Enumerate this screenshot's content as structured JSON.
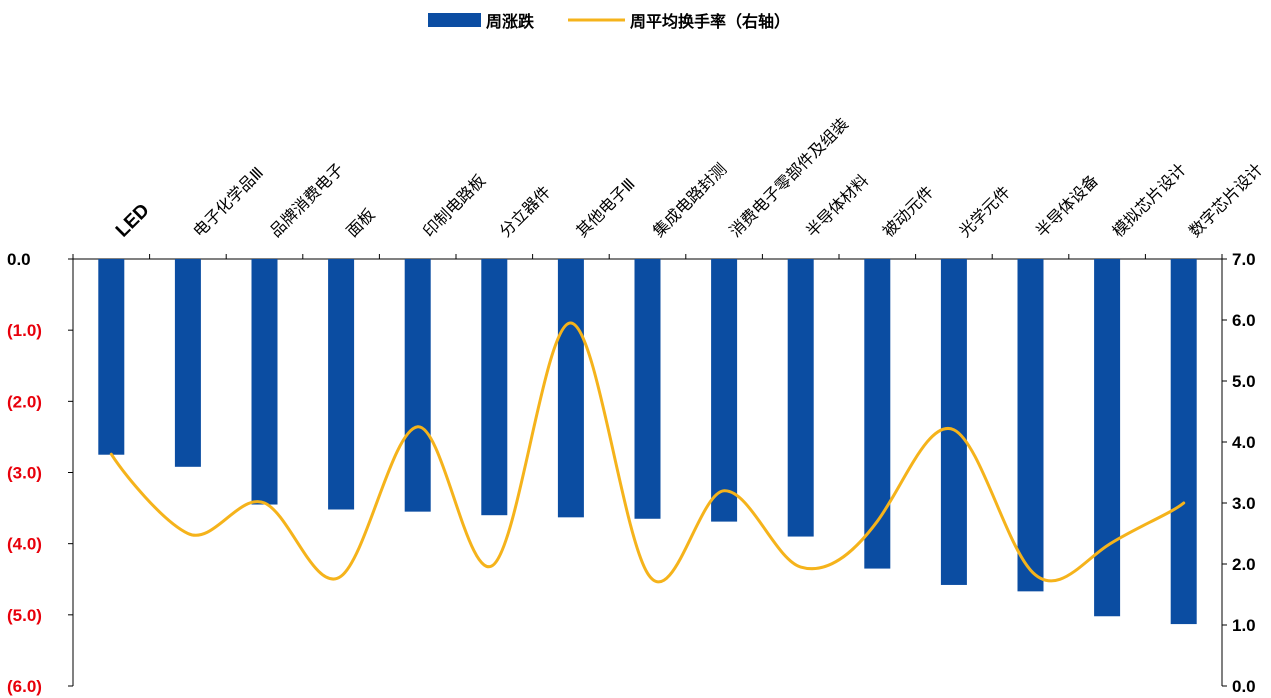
{
  "legend": {
    "bar_label": "周涨跌",
    "line_label": "周平均换手率（右轴）"
  },
  "colors": {
    "bar": "#0B4DA2",
    "line": "#F5B31B",
    "negative_tick": "#E8000B",
    "axis": "#000000"
  },
  "chart_data": {
    "type": "bar",
    "categories": [
      "LED",
      "电子化学品Ⅲ",
      "品牌消费电子",
      "面板",
      "印制电路板",
      "分立器件",
      "其他电子Ⅲ",
      "集成电路封测",
      "消费电子零部件及组装",
      "半导体材料",
      "被动元件",
      "光学元件",
      "半导体设备",
      "模拟芯片设计",
      "数字芯片设计"
    ],
    "series": [
      {
        "name": "周涨跌",
        "type": "bar",
        "axis": "left",
        "values": [
          -2.75,
          -2.92,
          -3.45,
          -3.52,
          -3.55,
          -3.6,
          -3.63,
          -3.65,
          -3.69,
          -3.9,
          -4.35,
          -4.58,
          -4.67,
          -5.02,
          -5.13
        ]
      },
      {
        "name": "周平均换手率（右轴）",
        "type": "line",
        "axis": "right",
        "smooth": true,
        "values": [
          3.8,
          2.5,
          3.0,
          1.8,
          4.25,
          2.0,
          5.95,
          1.85,
          3.2,
          1.95,
          2.7,
          4.2,
          1.9,
          2.3,
          3.0
        ]
      }
    ],
    "y_left": {
      "ylim": [
        -6,
        0
      ],
      "ticks": [
        "0.0",
        "(1.0)",
        "(2.0)",
        "(3.0)",
        "(4.0)",
        "(5.0)",
        "(6.0)"
      ]
    },
    "y_right": {
      "ylim": [
        0,
        7
      ],
      "ticks": [
        "7.0",
        "6.0",
        "5.0",
        "4.0",
        "3.0",
        "2.0",
        "1.0",
        "0.0"
      ]
    },
    "legend_position": "top-center",
    "grid": false
  }
}
